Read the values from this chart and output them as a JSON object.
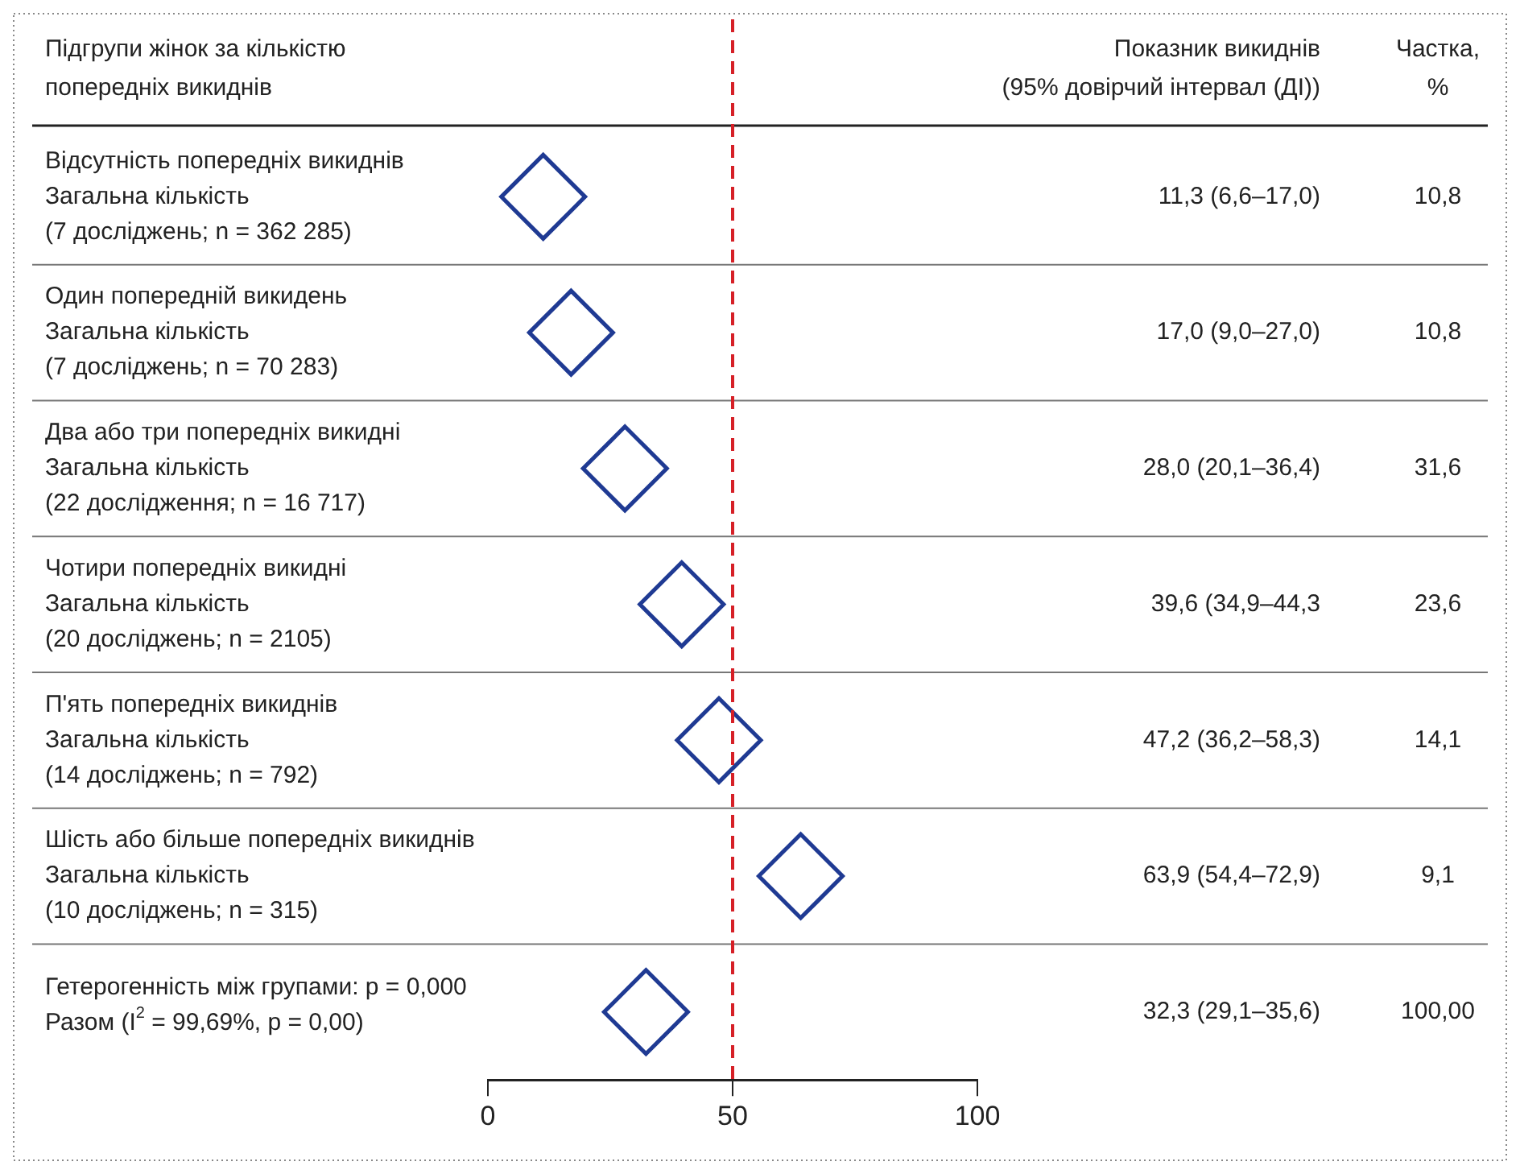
{
  "chart_data": {
    "type": "scatter",
    "orientation": "horizontal",
    "marker": "diamond",
    "ylabel": "Підгрупи жінок за кількістю\nпопередніх викиднів",
    "categories": [
      "Відсутність попередніх викиднів\nЗагальна кількість\n(7 досліджень; n = 362 285)",
      "Один попередній викидень\nЗагальна кількість\n(7 досліджень; n = 70 283)",
      "Два або три попередніх викидні\nЗагальна кількість\n(22 дослідження; n = 16 717)",
      "Чотири попередніх викидні\nЗагальна кількість\n(20 досліджень; n = 2105)",
      "П'ять попередніх викиднів\nЗагальна кількість\n(14 досліджень; n = 792)",
      "Шість або більше попередніх викиднів\nЗагальна кількість\n(10 досліджень; n = 315)",
      "Гетерогенність між групами: p = 0,000\nРазом (I$^{2}$ = 99,69%, p = 0,00)"
    ],
    "series": [
      {
        "color": "#1f3a93",
        "values": [
          11.3,
          17.0,
          28.0,
          39.6,
          47.2,
          63.9,
          32.3
        ],
        "value_labels": [
          "11,3 (6,6–17,0)",
          "17,0 (9,0–27,0)",
          "28,0 (20,1–36,4)",
          "39,6 (34,9–44,3",
          "47,2 (36,2–58,3)",
          "63,9 (54,4–72,9)",
          "32,3 (29,1–35,6)"
        ]
      }
    ],
    "xlim": [
      0,
      100
    ],
    "xticks": [
      0,
      50,
      100
    ],
    "ref_lines": [
      {
        "axis": "x",
        "value": 50,
        "color": "#d62027",
        "line_style": "dashed"
      }
    ],
    "annotations": [
      "Показник викиднів\n(95% довірчий інтервал (ДІ))",
      "Частка,\n%",
      "10,8",
      "10,8",
      "31,6",
      "23,6",
      "14,1",
      "9,1",
      "100,00"
    ]
  }
}
